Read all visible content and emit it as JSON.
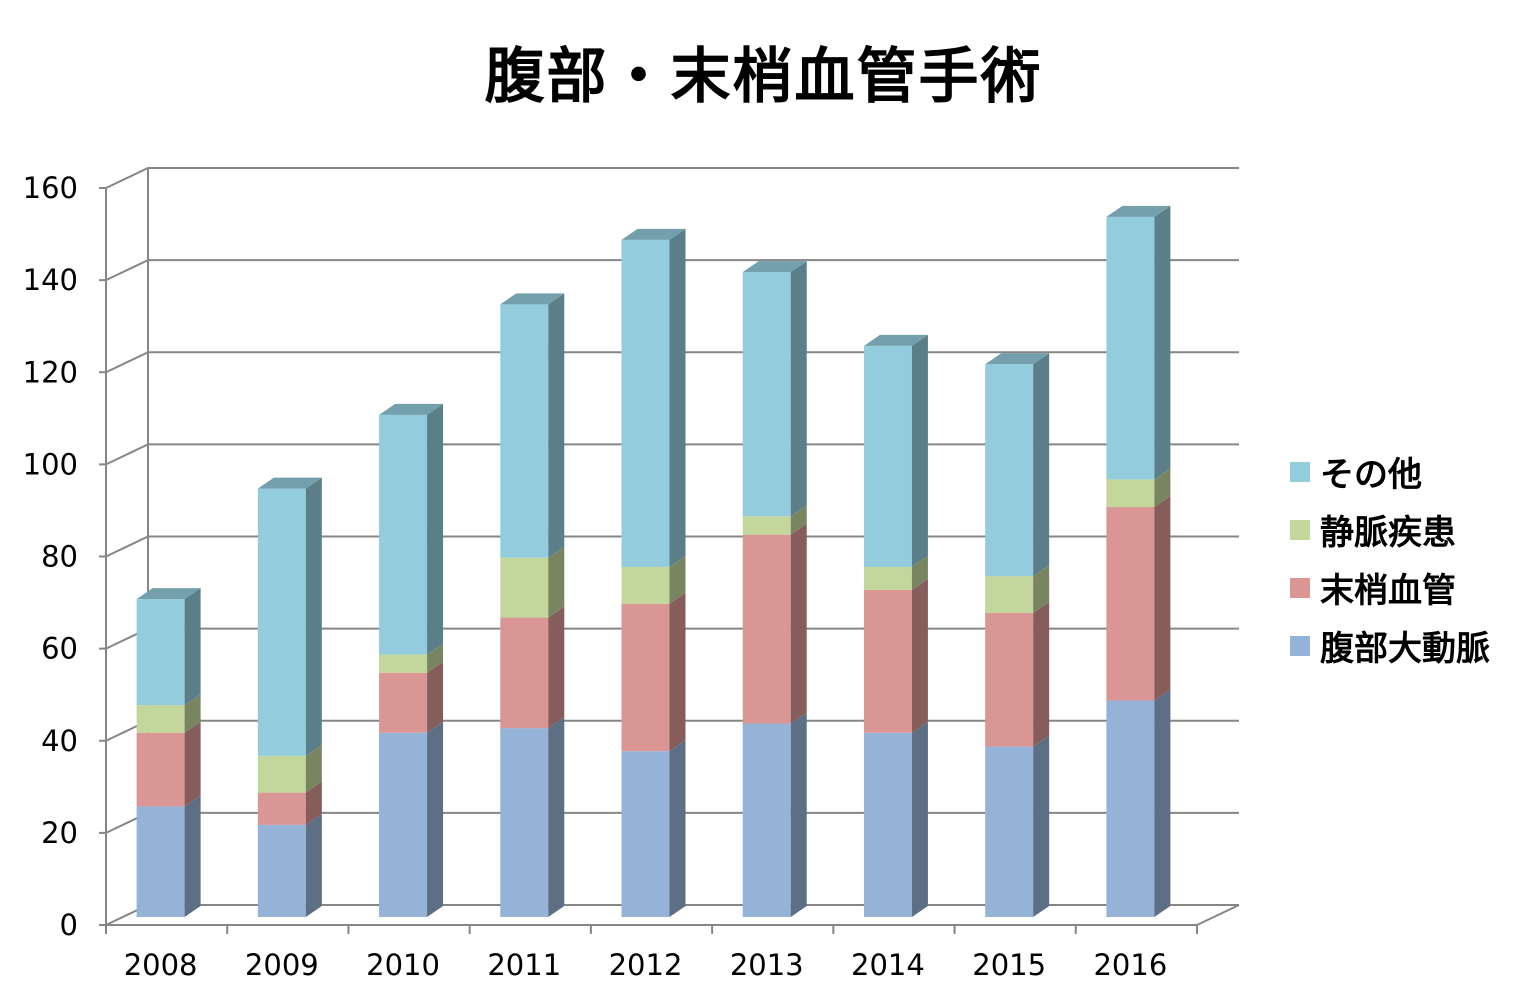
{
  "chart_data": {
    "type": "bar",
    "stacked": true,
    "title": "腹部・末梢血管手術",
    "categories": [
      "2008",
      "2009",
      "2010",
      "2011",
      "2012",
      "2013",
      "2014",
      "2015",
      "2016"
    ],
    "series": [
      {
        "name": "腹部大動脈",
        "color": "#95b3d7",
        "values": [
          24,
          20,
          40,
          41,
          36,
          42,
          40,
          37,
          47
        ]
      },
      {
        "name": "末梢血管",
        "color": "#d99694",
        "values": [
          16,
          7,
          13,
          24,
          32,
          41,
          31,
          29,
          42
        ]
      },
      {
        "name": "静脈疾患",
        "color": "#c3d69b",
        "values": [
          6,
          8,
          4,
          13,
          8,
          4,
          5,
          8,
          6
        ]
      },
      {
        "name": "その他",
        "color": "#93cddd",
        "values": [
          23,
          58,
          52,
          55,
          71,
          53,
          48,
          46,
          57
        ]
      }
    ],
    "ylim": [
      0,
      160
    ],
    "yticks": [
      0,
      20,
      40,
      60,
      80,
      100,
      120,
      140,
      160
    ],
    "grid": true,
    "legend_position": "right",
    "legend_order": [
      "その他",
      "静脈疾患",
      "末梢血管",
      "腹部大動脈"
    ]
  }
}
